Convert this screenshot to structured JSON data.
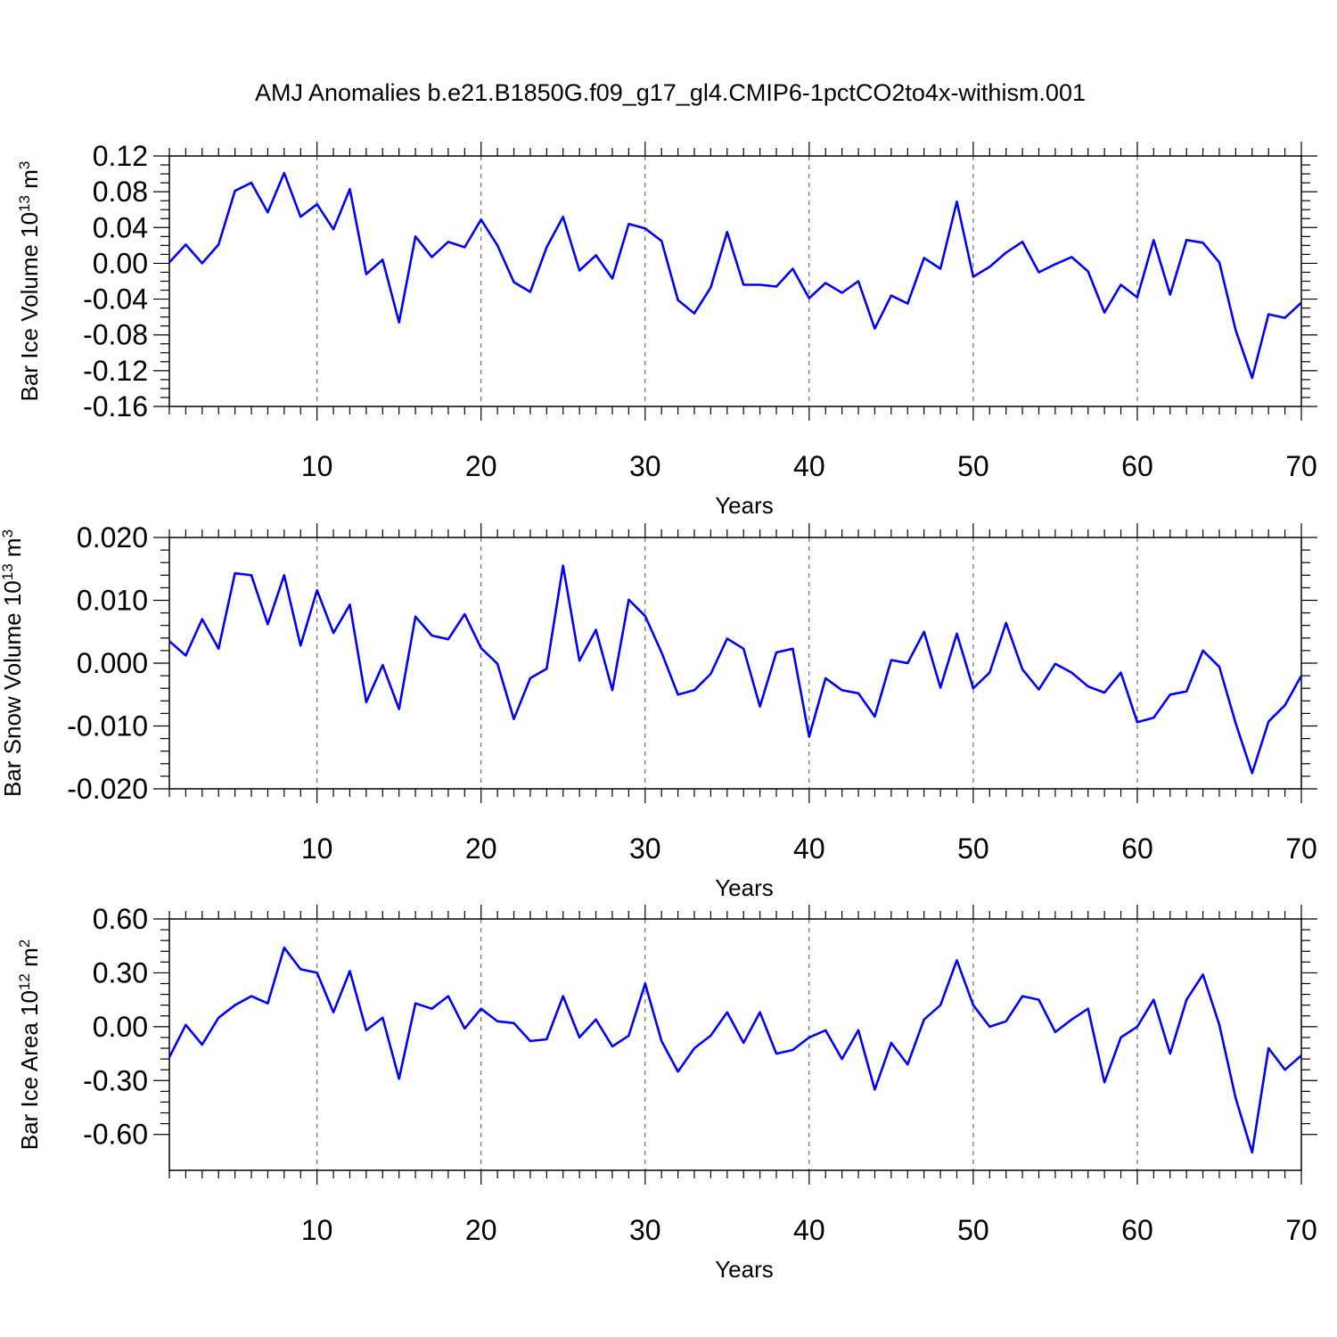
{
  "title": "AMJ Anomalies b.e21.B1850G.f09_g17_gl4.CMIP6-1pctCO2to4x-withism.001",
  "colors": {
    "series": "#0000ff",
    "axes": "#000000",
    "grid": "#555555"
  },
  "chart_data": [
    {
      "type": "line",
      "ylabel": "Bar Ice Volume 10",
      "ylabel_exp": "13",
      "ylabel_unit": " m",
      "ylabel_unit_exp": "3",
      "xlabel": "Years",
      "xlim": [
        1,
        70
      ],
      "ylim": [
        -0.16,
        0.12
      ],
      "yticks": [
        0.12,
        0.08,
        0.04,
        0.0,
        -0.04,
        -0.08,
        -0.12,
        -0.16
      ],
      "ytick_labels": [
        "0.12",
        "0.08",
        "0.04",
        "0.00",
        "-0.04",
        "-0.08",
        "-0.12",
        "-0.16"
      ],
      "xticks": [
        10,
        20,
        30,
        40,
        50,
        60,
        70
      ],
      "xtick_labels": [
        "10",
        "20",
        "30",
        "40",
        "50",
        "60",
        "70"
      ],
      "grid": "dashed vertical at x ticks",
      "x": [
        1,
        2,
        3,
        4,
        5,
        6,
        7,
        8,
        9,
        10,
        11,
        12,
        13,
        14,
        15,
        16,
        17,
        18,
        19,
        20,
        21,
        22,
        23,
        24,
        25,
        26,
        27,
        28,
        29,
        30,
        31,
        32,
        33,
        34,
        35,
        36,
        37,
        38,
        39,
        40,
        41,
        42,
        43,
        44,
        45,
        46,
        47,
        48,
        49,
        50,
        51,
        52,
        53,
        54,
        55,
        56,
        57,
        58,
        59,
        60,
        61,
        62,
        63,
        64,
        65,
        66,
        67,
        68,
        69,
        70
      ],
      "values": [
        0.001,
        0.021,
        0.0,
        0.021,
        0.081,
        0.09,
        0.057,
        0.101,
        0.052,
        0.066,
        0.038,
        0.083,
        -0.012,
        0.004,
        -0.066,
        0.03,
        0.007,
        0.024,
        0.018,
        0.049,
        0.02,
        -0.021,
        -0.032,
        0.018,
        0.052,
        -0.008,
        0.009,
        -0.017,
        0.044,
        0.039,
        0.025,
        -0.041,
        -0.056,
        -0.027,
        0.035,
        -0.024,
        -0.024,
        -0.026,
        -0.006,
        -0.039,
        -0.022,
        -0.033,
        -0.02,
        -0.073,
        -0.036,
        -0.045,
        0.006,
        -0.006,
        0.069,
        -0.015,
        -0.004,
        0.012,
        0.024,
        -0.01,
        -0.001,
        0.007,
        -0.009,
        -0.055,
        -0.024,
        -0.038,
        0.026,
        -0.035,
        0.026,
        0.023,
        0.001,
        -0.075,
        -0.128,
        -0.057,
        -0.061,
        -0.044
      ]
    },
    {
      "type": "line",
      "ylabel": "Bar Snow Volume 10",
      "ylabel_exp": "13",
      "ylabel_unit": " m",
      "ylabel_unit_exp": "3",
      "xlabel": "Years",
      "xlim": [
        1,
        70
      ],
      "ylim": [
        -0.02,
        0.02
      ],
      "yticks": [
        0.02,
        0.01,
        0.0,
        -0.01,
        -0.02
      ],
      "ytick_labels": [
        "0.020",
        "0.010",
        "0.000",
        "-0.010",
        "-0.020"
      ],
      "xticks": [
        10,
        20,
        30,
        40,
        50,
        60,
        70
      ],
      "xtick_labels": [
        "10",
        "20",
        "30",
        "40",
        "50",
        "60",
        "70"
      ],
      "grid": "dashed vertical at x ticks",
      "x": [
        1,
        2,
        3,
        4,
        5,
        6,
        7,
        8,
        9,
        10,
        11,
        12,
        13,
        14,
        15,
        16,
        17,
        18,
        19,
        20,
        21,
        22,
        23,
        24,
        25,
        26,
        27,
        28,
        29,
        30,
        31,
        32,
        33,
        34,
        35,
        36,
        37,
        38,
        39,
        40,
        41,
        42,
        43,
        44,
        45,
        46,
        47,
        48,
        49,
        50,
        51,
        52,
        53,
        54,
        55,
        56,
        57,
        58,
        59,
        60,
        61,
        62,
        63,
        64,
        65,
        66,
        67,
        68,
        69,
        70
      ],
      "values": [
        0.0035,
        0.0012,
        0.007,
        0.0023,
        0.0143,
        0.014,
        0.0062,
        0.014,
        0.0028,
        0.0116,
        0.0048,
        0.0093,
        -0.0062,
        -0.0003,
        -0.0073,
        0.0074,
        0.0044,
        0.0038,
        0.0078,
        0.0024,
        -0.0001,
        -0.0089,
        -0.0024,
        -0.0009,
        0.0155,
        0.0004,
        0.0053,
        -0.0043,
        0.0101,
        0.0075,
        0.0017,
        -0.005,
        -0.0043,
        -0.0017,
        0.0039,
        0.0023,
        -0.0069,
        0.0017,
        0.0023,
        -0.0117,
        -0.0024,
        -0.0043,
        -0.0048,
        -0.0085,
        0.0005,
        0.0,
        0.005,
        -0.0039,
        0.0047,
        -0.004,
        -0.0015,
        0.0064,
        -0.001,
        -0.0042,
        -0.0001,
        -0.0015,
        -0.0037,
        -0.0047,
        -0.0015,
        -0.0094,
        -0.0087,
        -0.005,
        -0.0045,
        0.002,
        -0.0006,
        -0.0096,
        -0.0175,
        -0.0093,
        -0.0067,
        -0.002
      ]
    },
    {
      "type": "line",
      "ylabel": "Bar Ice Area 10",
      "ylabel_exp": "12",
      "ylabel_unit": " m",
      "ylabel_unit_exp": "2",
      "xlabel": "Years",
      "xlim": [
        1,
        70
      ],
      "ylim": [
        -0.8,
        0.6
      ],
      "yticks": [
        0.6,
        0.3,
        0.0,
        -0.3,
        -0.6
      ],
      "ytick_labels": [
        "0.60",
        "0.30",
        "0.00",
        "-0.30",
        "-0.60"
      ],
      "xticks": [
        10,
        20,
        30,
        40,
        50,
        60,
        70
      ],
      "xtick_labels": [
        "10",
        "20",
        "30",
        "40",
        "50",
        "60",
        "70"
      ],
      "grid": "dashed vertical at x ticks",
      "x": [
        1,
        2,
        3,
        4,
        5,
        6,
        7,
        8,
        9,
        10,
        11,
        12,
        13,
        14,
        15,
        16,
        17,
        18,
        19,
        20,
        21,
        22,
        23,
        24,
        25,
        26,
        27,
        28,
        29,
        30,
        31,
        32,
        33,
        34,
        35,
        36,
        37,
        38,
        39,
        40,
        41,
        42,
        43,
        44,
        45,
        46,
        47,
        48,
        49,
        50,
        51,
        52,
        53,
        54,
        55,
        56,
        57,
        58,
        59,
        60,
        61,
        62,
        63,
        64,
        65,
        66,
        67,
        68,
        69,
        70
      ],
      "values": [
        -0.17,
        0.01,
        -0.1,
        0.05,
        0.12,
        0.17,
        0.13,
        0.44,
        0.32,
        0.3,
        0.08,
        0.31,
        -0.02,
        0.05,
        -0.29,
        0.13,
        0.1,
        0.17,
        -0.01,
        0.1,
        0.03,
        0.02,
        -0.08,
        -0.07,
        0.17,
        -0.06,
        0.04,
        -0.11,
        -0.05,
        0.24,
        -0.08,
        -0.25,
        -0.12,
        -0.05,
        0.08,
        -0.09,
        0.08,
        -0.15,
        -0.13,
        -0.06,
        -0.02,
        -0.18,
        -0.02,
        -0.35,
        -0.09,
        -0.21,
        0.04,
        0.12,
        0.37,
        0.12,
        0.0,
        0.03,
        0.17,
        0.15,
        -0.03,
        0.04,
        0.1,
        -0.31,
        -0.06,
        0.0,
        0.15,
        -0.15,
        0.15,
        0.29,
        0.01,
        -0.4,
        -0.7,
        -0.12,
        -0.24,
        -0.16
      ]
    }
  ]
}
